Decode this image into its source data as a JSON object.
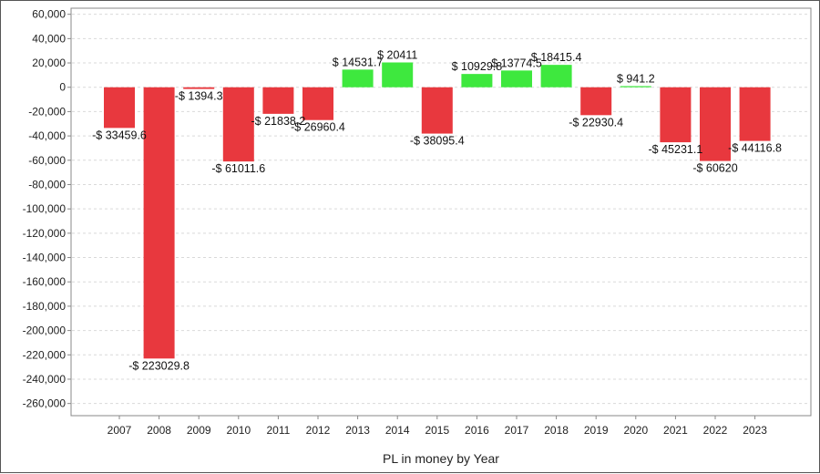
{
  "chart_data": {
    "type": "bar",
    "xlabel": "PL in money by Year",
    "ylabel": "",
    "ylim": [
      -270000,
      65000
    ],
    "yticks": [
      60000,
      40000,
      20000,
      0,
      -20000,
      -40000,
      -60000,
      -80000,
      -100000,
      -120000,
      -140000,
      -160000,
      -180000,
      -200000,
      -220000,
      -240000,
      -260000
    ],
    "ytick_labels": [
      "60,000",
      "40,000",
      "20,000",
      "0",
      "-20,000",
      "-40,000",
      "-60,000",
      "-80,000",
      "-100,000",
      "-120,000",
      "-140,000",
      "-160,000",
      "-180,000",
      "-200,000",
      "-220,000",
      "-240,000",
      "-260,000"
    ],
    "grid": true,
    "categories": [
      "2007",
      "2008",
      "2009",
      "2010",
      "2011",
      "2012",
      "2013",
      "2014",
      "2015",
      "2016",
      "2017",
      "2018",
      "2019",
      "2020",
      "2021",
      "2022",
      "2023"
    ],
    "values": [
      -33459.6,
      -223029.8,
      -1394.3,
      -61011.6,
      -21838.2,
      -26960.4,
      14531.7,
      20411,
      -38095.4,
      10929.8,
      13774.5,
      18415.4,
      -22930.4,
      941.2,
      -45231.1,
      -60620,
      -44116.8
    ],
    "data_labels": [
      "-$ 33459.6",
      "-$ 223029.8",
      "-$ 1394.3",
      "-$ 61011.6",
      "-$ 21838.2",
      "-$ 26960.4",
      "$ 14531.7",
      "$ 20411",
      "-$ 38095.4",
      "$ 10929.8",
      "$ 13774.5",
      "$ 18415.4",
      "-$ 22930.4",
      "$ 941.2",
      "-$ 45231.1",
      "-$ 60620",
      "-$ 44116.8"
    ],
    "colors": {
      "positive": "#3ee83e",
      "negative": "#e8383e",
      "grid": "#d9d9d9",
      "axis": "#888888"
    }
  }
}
